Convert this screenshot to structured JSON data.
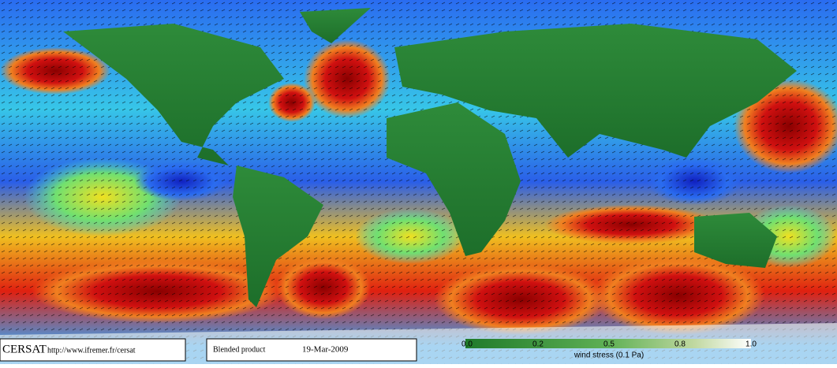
{
  "footer": {
    "source": "CERSAT",
    "url": "http://www.ifremer.fr/cersat",
    "product": "Blended product",
    "date": "19-Mar-2009"
  },
  "legend": {
    "ticks": [
      "0.0",
      "0.2",
      "0.5",
      "0.8",
      "1.0"
    ],
    "label": "wind stress (0.1 Pa)"
  }
}
